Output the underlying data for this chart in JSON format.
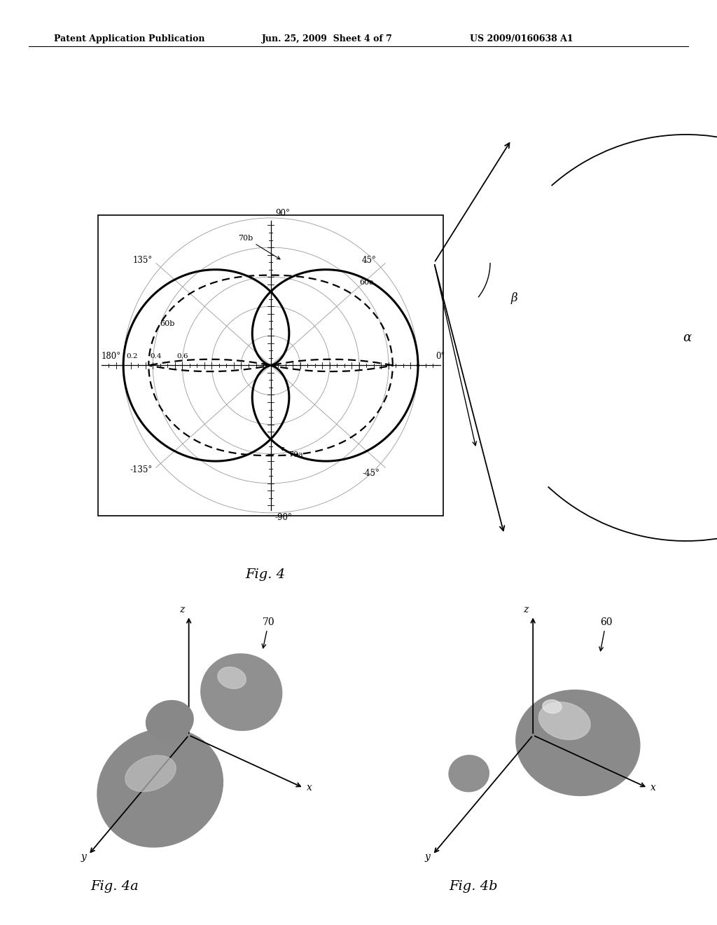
{
  "title_left": "Patent Application Publication",
  "title_center": "Jun. 25, 2009  Sheet 4 of 7",
  "title_right": "US 2009/0160638 A1",
  "fig4_caption": "Fig. 4",
  "fig4a_caption": "Fig. 4a",
  "fig4b_caption": "Fig. 4b",
  "bg_color": "#ffffff",
  "line_color": "#000000",
  "grid_color": "#999999",
  "label_alpha": "α",
  "label_beta": "β"
}
